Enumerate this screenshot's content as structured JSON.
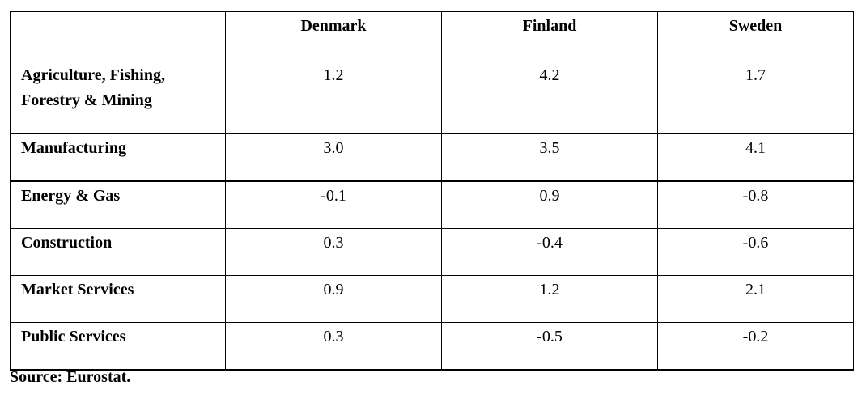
{
  "table": {
    "corner_label": "",
    "columns": [
      "Denmark",
      "Finland",
      "Sweden"
    ],
    "rows": [
      {
        "label": "Agriculture, Fishing, Forestry & Mining",
        "values": [
          "1.2",
          "4.2",
          "1.7"
        ]
      },
      {
        "label": "Manufacturing",
        "values": [
          "3.0",
          "3.5",
          "4.1"
        ]
      },
      {
        "label": "Energy & Gas",
        "values": [
          "-0.1",
          "0.9",
          "-0.8"
        ]
      },
      {
        "label": "Construction",
        "values": [
          "0.3",
          "-0.4",
          "-0.6"
        ]
      },
      {
        "label": "Market Services",
        "values": [
          "0.9",
          "1.2",
          "2.1"
        ]
      },
      {
        "label": "Public Services",
        "values": [
          "0.3",
          "-0.5",
          "-0.2"
        ]
      }
    ]
  },
  "source_note": "Source: Eurostat."
}
